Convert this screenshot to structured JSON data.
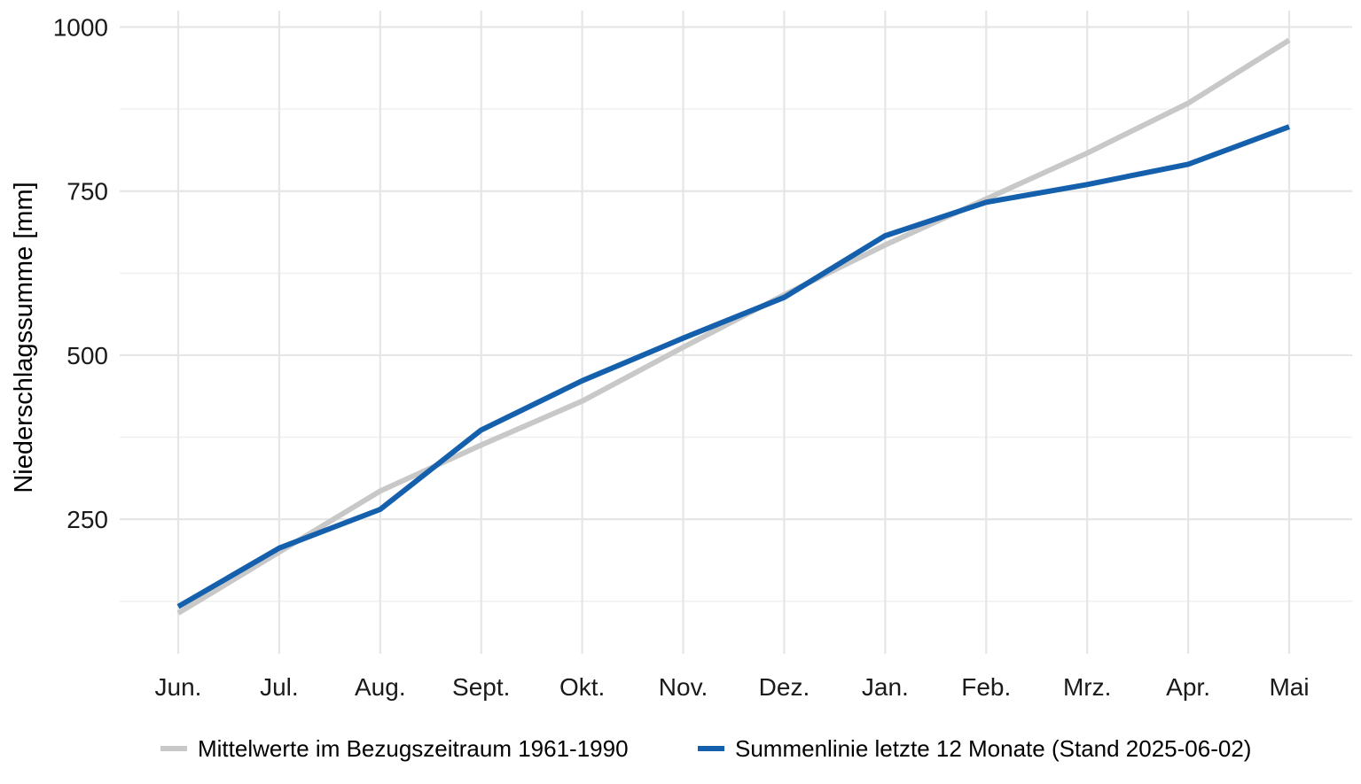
{
  "chart_data": {
    "type": "line",
    "title": "",
    "xlabel": "",
    "ylabel": "Niederschlagssumme [mm]",
    "categories": [
      "Jun.",
      "Jul.",
      "Aug.",
      "Sept.",
      "Okt.",
      "Nov.",
      "Dez.",
      "Jan.",
      "Feb.",
      "Mrz.",
      "Apr.",
      "Mai"
    ],
    "yticks": [
      250,
      500,
      750,
      1000
    ],
    "ylim": [
      45,
      1025
    ],
    "grid": true,
    "legend_position": "bottom",
    "series": [
      {
        "name": "Mittelwerte im Bezugszeitraum 1961-1990",
        "color": "#c8c8c8",
        "values": [
          107,
          200,
          293,
          363,
          430,
          512,
          592,
          668,
          738,
          808,
          884,
          980
        ]
      },
      {
        "name": "Summenlinie letzte 12 Monate (Stand 2025-06-02)",
        "color": "#1560ac",
        "values": [
          117,
          206,
          265,
          386,
          461,
          526,
          588,
          682,
          733,
          760,
          791,
          848
        ]
      }
    ]
  }
}
